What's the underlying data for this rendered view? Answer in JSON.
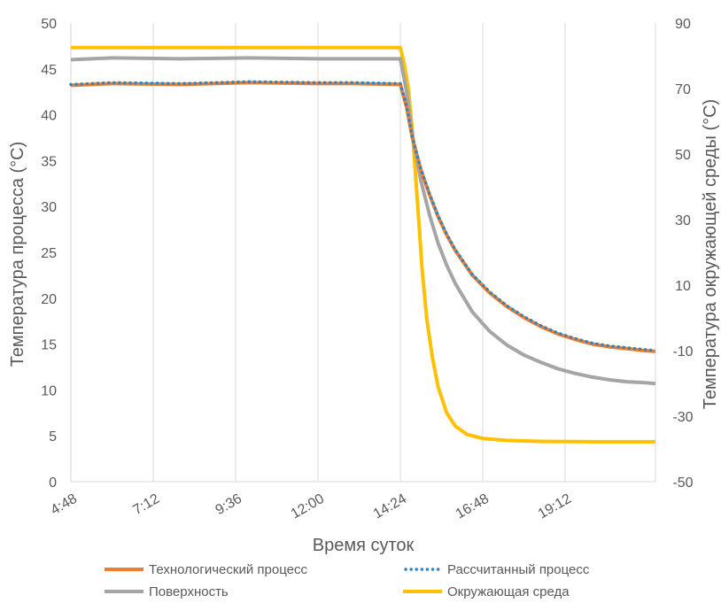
{
  "chart_data": {
    "type": "line",
    "title": "",
    "xlabel": "Время суток",
    "ylabel": "Температура процесса (°C)",
    "y2label": "Температура окружающей среды (°C)",
    "x_ticks": [
      "4:48",
      "7:12",
      "9:36",
      "12:00",
      "14:24",
      "16:48",
      "19:12"
    ],
    "x_range": [
      "4:48",
      "21:50"
    ],
    "ylim": [
      0,
      50
    ],
    "y_ticks": [
      0,
      5,
      10,
      15,
      20,
      25,
      30,
      35,
      40,
      45,
      50
    ],
    "y2lim": [
      -50,
      90
    ],
    "y2_ticks": [
      -50,
      -30,
      -10,
      10,
      30,
      50,
      70,
      90
    ],
    "grid": "vertical",
    "legend_position": "bottom",
    "series": [
      {
        "name": "Технологический процесс",
        "axis": "left",
        "color": "#ED7D31",
        "style": "solid",
        "x": [
          "4:48",
          "6:00",
          "8:00",
          "10:00",
          "12:00",
          "13:00",
          "14:24",
          "14:35",
          "14:45",
          "15:00",
          "15:15",
          "15:30",
          "15:45",
          "16:00",
          "16:30",
          "17:00",
          "17:30",
          "18:00",
          "18:30",
          "19:00",
          "19:30",
          "20:00",
          "20:30",
          "21:00",
          "21:30",
          "21:50"
        ],
        "values": [
          43.2,
          43.4,
          43.3,
          43.5,
          43.4,
          43.4,
          43.3,
          40.8,
          37.5,
          34.0,
          31.3,
          28.9,
          26.9,
          25.2,
          22.5,
          20.6,
          19.1,
          17.9,
          16.9,
          16.1,
          15.5,
          15.0,
          14.7,
          14.5,
          14.3,
          14.2
        ]
      },
      {
        "name": "Рассчитанный процесс",
        "axis": "left",
        "color": "#2E86C1",
        "style": "dotted",
        "x": [
          "4:48",
          "6:00",
          "8:00",
          "10:00",
          "12:00",
          "13:00",
          "14:24",
          "14:35",
          "14:45",
          "15:00",
          "15:15",
          "15:30",
          "15:45",
          "16:00",
          "16:30",
          "17:00",
          "17:30",
          "18:00",
          "18:30",
          "19:00",
          "19:30",
          "20:00",
          "20:30",
          "21:00",
          "21:30",
          "21:50"
        ],
        "values": [
          43.3,
          43.5,
          43.4,
          43.6,
          43.5,
          43.5,
          43.4,
          40.9,
          37.6,
          34.1,
          31.4,
          29.0,
          27.0,
          25.3,
          22.6,
          20.7,
          19.2,
          18.0,
          17.0,
          16.2,
          15.6,
          15.1,
          14.8,
          14.6,
          14.4,
          14.3
        ]
      },
      {
        "name": "Поверхность",
        "axis": "left",
        "color": "#A5A5A5",
        "style": "solid",
        "x": [
          "4:48",
          "6:00",
          "8:00",
          "10:00",
          "12:00",
          "13:00",
          "14:24",
          "14:35",
          "14:45",
          "15:00",
          "15:15",
          "15:30",
          "15:45",
          "16:00",
          "16:30",
          "17:00",
          "17:30",
          "18:00",
          "18:30",
          "19:00",
          "19:30",
          "20:00",
          "20:30",
          "21:00",
          "21:30",
          "21:50"
        ],
        "values": [
          46.0,
          46.2,
          46.1,
          46.2,
          46.1,
          46.1,
          46.1,
          42.5,
          37.8,
          32.8,
          29.1,
          26.0,
          23.6,
          21.6,
          18.5,
          16.4,
          14.9,
          13.8,
          13.0,
          12.3,
          11.8,
          11.4,
          11.1,
          10.9,
          10.8,
          10.7
        ]
      },
      {
        "name": "Окружающая среда",
        "axis": "right",
        "color": "#FFC000",
        "style": "solid",
        "x": [
          "4:48",
          "6:00",
          "8:00",
          "10:00",
          "12:00",
          "13:00",
          "14:24",
          "14:30",
          "14:38",
          "14:46",
          "14:54",
          "15:02",
          "15:10",
          "15:20",
          "15:30",
          "15:45",
          "16:00",
          "16:20",
          "16:48",
          "17:30",
          "18:30",
          "20:00",
          "21:50"
        ],
        "values": [
          82.5,
          82.5,
          82.5,
          82.5,
          82.5,
          82.5,
          82.5,
          78.0,
          70.0,
          55.0,
          35.0,
          15.0,
          0.0,
          -12.0,
          -21.0,
          -29.0,
          -33.0,
          -35.5,
          -36.8,
          -37.4,
          -37.7,
          -37.8,
          -37.8
        ]
      }
    ]
  }
}
